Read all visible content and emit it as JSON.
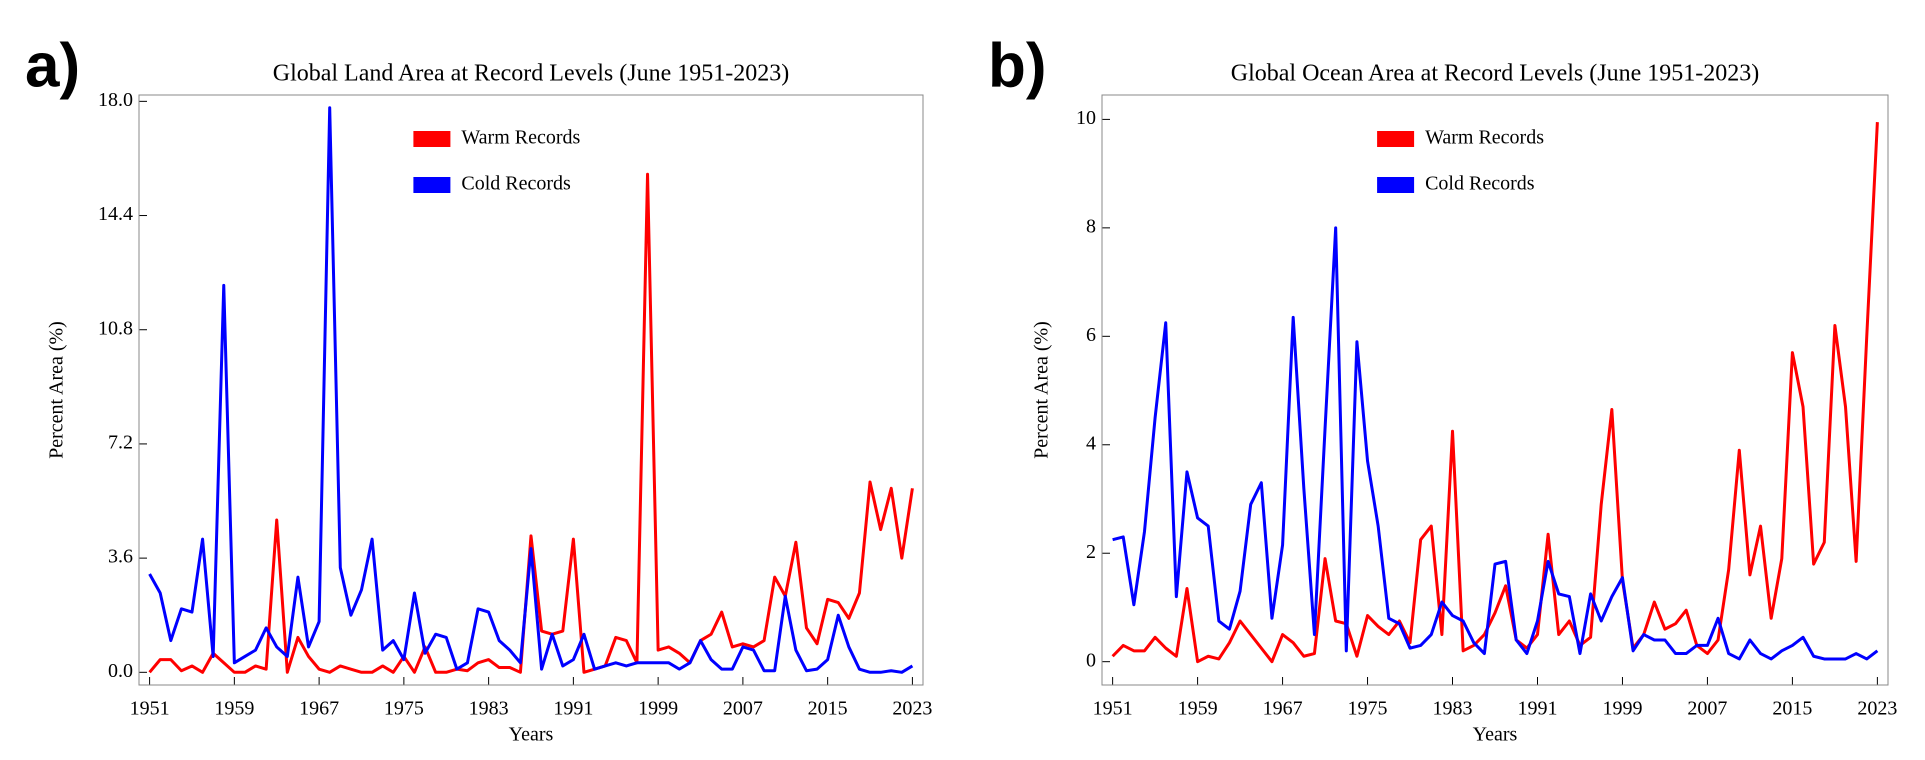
{
  "chart_data": [
    {
      "type": "line",
      "panel_label": "a)",
      "title": "Global Land Area at Record Levels (June 1951-2023)",
      "x_label": "Years",
      "y_label": "Percent Area (%)",
      "legend": "upper center",
      "x": [
        1951,
        1952,
        1953,
        1954,
        1955,
        1956,
        1957,
        1958,
        1959,
        1960,
        1961,
        1962,
        1963,
        1964,
        1965,
        1966,
        1967,
        1968,
        1969,
        1970,
        1971,
        1972,
        1973,
        1974,
        1975,
        1976,
        1977,
        1978,
        1979,
        1980,
        1981,
        1982,
        1983,
        1984,
        1985,
        1986,
        1987,
        1988,
        1989,
        1990,
        1991,
        1992,
        1993,
        1994,
        1995,
        1996,
        1997,
        1998,
        1999,
        2000,
        2001,
        2002,
        2003,
        2004,
        2005,
        2006,
        2007,
        2008,
        2009,
        2010,
        2011,
        2012,
        2013,
        2014,
        2015,
        2016,
        2017,
        2018,
        2019,
        2020,
        2021,
        2022,
        2023
      ],
      "xlim": [
        1950,
        2024
      ],
      "xticks": [
        1951,
        1959,
        1967,
        1975,
        1983,
        1991,
        1999,
        2007,
        2015,
        2023
      ],
      "ylim": [
        -0.4,
        18.2
      ],
      "yticks": [
        {
          "value": 0,
          "label": "0.0"
        },
        3.6,
        7.2,
        10.8,
        14.4,
        {
          "value": 18,
          "label": "18.0"
        }
      ],
      "series": [
        {
          "name": "Warm Records",
          "color": "#ff0000",
          "values": [
            0.0,
            0.4,
            0.4,
            0.05,
            0.2,
            0.0,
            0.6,
            0.3,
            0.0,
            0.0,
            0.2,
            0.1,
            4.8,
            0.0,
            1.1,
            0.5,
            0.1,
            0.0,
            0.2,
            0.1,
            0.0,
            0.0,
            0.2,
            0.0,
            0.5,
            0.0,
            0.8,
            0.0,
            0.0,
            0.1,
            0.05,
            0.3,
            0.4,
            0.15,
            0.15,
            0.0,
            4.3,
            1.3,
            1.2,
            1.3,
            4.2,
            0.0,
            0.1,
            0.2,
            1.1,
            1.0,
            0.3,
            15.7,
            0.7,
            0.8,
            0.6,
            0.3,
            1.0,
            1.2,
            1.9,
            0.8,
            0.9,
            0.8,
            1.0,
            3.0,
            2.4,
            4.1,
            1.4,
            0.9,
            2.3,
            2.2,
            1.7,
            2.5,
            6.0,
            4.5,
            5.8,
            3.6,
            5.8
          ]
        },
        {
          "name": "Cold Records",
          "color": "#0000ff",
          "values": [
            3.1,
            2.5,
            1.0,
            2.0,
            1.9,
            4.2,
            0.5,
            12.2,
            0.3,
            0.5,
            0.7,
            1.4,
            0.8,
            0.5,
            3.0,
            0.8,
            1.6,
            17.8,
            3.3,
            1.8,
            2.6,
            4.2,
            0.7,
            1.0,
            0.4,
            2.5,
            0.6,
            1.2,
            1.1,
            0.1,
            0.3,
            2.0,
            1.9,
            1.0,
            0.7,
            0.3,
            3.9,
            0.1,
            1.2,
            0.2,
            0.4,
            1.2,
            0.1,
            0.2,
            0.3,
            0.2,
            0.3,
            0.3,
            0.3,
            0.3,
            0.1,
            0.3,
            1.0,
            0.4,
            0.1,
            0.1,
            0.8,
            0.7,
            0.05,
            0.05,
            2.4,
            0.7,
            0.05,
            0.1,
            0.4,
            1.8,
            0.8,
            0.1,
            0.0,
            0.0,
            0.05,
            0.0,
            0.2
          ]
        }
      ]
    },
    {
      "type": "line",
      "panel_label": "b)",
      "title": "Global Ocean Area at Record Levels (June 1951-2023)",
      "x_label": "Years",
      "y_label": "Percent Area (%)",
      "legend": "upper center",
      "x": [
        1951,
        1952,
        1953,
        1954,
        1955,
        1956,
        1957,
        1958,
        1959,
        1960,
        1961,
        1962,
        1963,
        1964,
        1965,
        1966,
        1967,
        1968,
        1969,
        1970,
        1971,
        1972,
        1973,
        1974,
        1975,
        1976,
        1977,
        1978,
        1979,
        1980,
        1981,
        1982,
        1983,
        1984,
        1985,
        1986,
        1987,
        1988,
        1989,
        1990,
        1991,
        1992,
        1993,
        1994,
        1995,
        1996,
        1997,
        1998,
        1999,
        2000,
        2001,
        2002,
        2003,
        2004,
        2005,
        2006,
        2007,
        2008,
        2009,
        2010,
        2011,
        2012,
        2013,
        2014,
        2015,
        2016,
        2017,
        2018,
        2019,
        2020,
        2021,
        2022,
        2023
      ],
      "xlim": [
        1950,
        2024
      ],
      "xticks": [
        1951,
        1959,
        1967,
        1975,
        1983,
        1991,
        1999,
        2007,
        2015,
        2023
      ],
      "ylim": [
        -0.43,
        10.45
      ],
      "yticks": [
        0,
        2,
        4,
        6,
        8,
        10
      ],
      "series": [
        {
          "name": "Warm Records",
          "color": "#ff0000",
          "values": [
            0.1,
            0.3,
            0.2,
            0.2,
            0.45,
            0.25,
            0.1,
            1.35,
            0.0,
            0.1,
            0.05,
            0.35,
            0.75,
            0.5,
            0.25,
            0.0,
            0.5,
            0.35,
            0.1,
            0.15,
            1.9,
            0.75,
            0.7,
            0.1,
            0.85,
            0.65,
            0.5,
            0.75,
            0.35,
            2.25,
            2.5,
            0.5,
            4.25,
            0.2,
            0.3,
            0.5,
            0.9,
            1.4,
            0.4,
            0.25,
            0.5,
            2.35,
            0.5,
            0.75,
            0.3,
            0.45,
            2.9,
            4.65,
            1.5,
            0.25,
            0.5,
            1.1,
            0.6,
            0.7,
            0.95,
            0.3,
            0.15,
            0.4,
            1.7,
            3.9,
            1.6,
            2.5,
            0.8,
            1.9,
            5.7,
            4.7,
            1.8,
            2.2,
            6.2,
            4.7,
            1.85,
            6.0,
            9.95
          ]
        },
        {
          "name": "Cold Records",
          "color": "#0000ff",
          "values": [
            2.25,
            2.3,
            1.05,
            2.4,
            4.5,
            6.25,
            1.2,
            3.5,
            2.65,
            2.5,
            0.75,
            0.6,
            1.3,
            2.9,
            3.3,
            0.8,
            2.15,
            6.35,
            3.2,
            0.5,
            4.3,
            8.0,
            0.2,
            5.9,
            3.7,
            2.5,
            0.8,
            0.7,
            0.25,
            0.3,
            0.5,
            1.1,
            0.85,
            0.75,
            0.35,
            0.15,
            1.8,
            1.85,
            0.4,
            0.15,
            0.75,
            1.85,
            1.25,
            1.2,
            0.15,
            1.25,
            0.75,
            1.2,
            1.55,
            0.2,
            0.5,
            0.4,
            0.4,
            0.15,
            0.15,
            0.3,
            0.3,
            0.8,
            0.15,
            0.05,
            0.4,
            0.15,
            0.05,
            0.2,
            0.3,
            0.45,
            0.1,
            0.05,
            0.05,
            0.05,
            0.15,
            0.05,
            0.2
          ]
        }
      ]
    }
  ]
}
